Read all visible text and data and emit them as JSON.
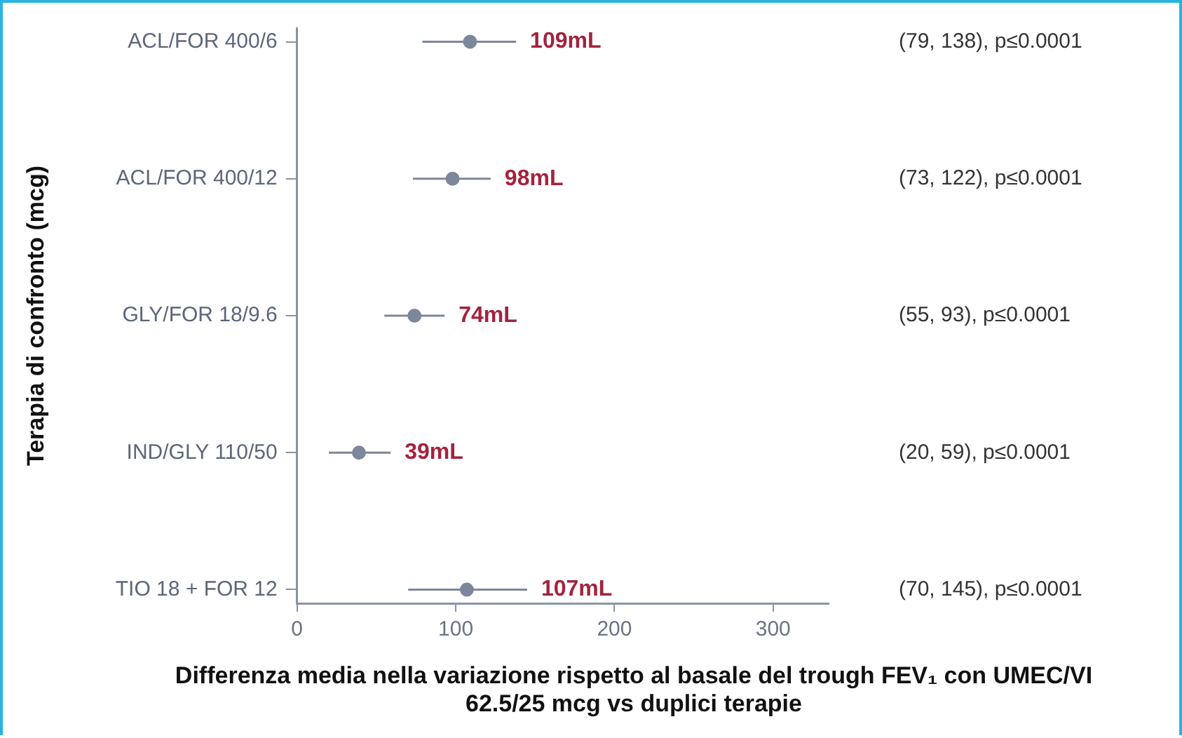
{
  "chart_data": {
    "type": "scatter",
    "orientation": "horizontal",
    "ylabel": "Terapia di confronto (mcg)",
    "xlabel": "Differenza media nella variazione rispetto al basale del trough FEV₁ con UMEC/VI 62.5/25 mcg vs duplici terapie",
    "categories": [
      "ACL/FOR 400/6",
      "ACL/FOR 400/12",
      "GLY/FOR 18/9.6",
      "IND/GLY 110/50",
      "TIO 18 + FOR 12"
    ],
    "series": [
      {
        "color": "#7d879b",
        "values": [
          109,
          98,
          74,
          39,
          107
        ],
        "errors": [
          [
            79,
            138
          ],
          [
            73,
            122
          ],
          [
            55,
            93
          ],
          [
            20,
            59
          ],
          [
            70,
            145
          ]
        ],
        "value_labels": [
          "109mL",
          "98mL",
          "74mL",
          "39mL",
          "107mL"
        ]
      }
    ],
    "annotations": [
      "(79, 138), p≤0.0001",
      "(73, 122), p≤0.0001",
      "(55, 93), p≤0.0001",
      "(20, 59), p≤0.0001",
      "(70, 145), p≤0.0001"
    ],
    "xlim": [
      0,
      335
    ],
    "xticks": [
      0,
      100,
      200,
      300
    ],
    "marker": "circle",
    "grid": false,
    "legend": false
  }
}
